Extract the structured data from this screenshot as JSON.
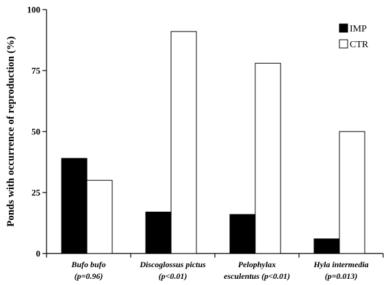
{
  "chart_data": {
    "type": "bar",
    "ylabel": "Ponds with occurrence of reproduction (%)",
    "xlabel": "",
    "ylim": [
      0,
      100
    ],
    "yticks": [
      0,
      25,
      50,
      75,
      100
    ],
    "categories": [
      {
        "line1": "Bufo bufo",
        "line2": "(p=0.96)"
      },
      {
        "line1": "Discoglossus pictus",
        "line2": "(p<0.01)"
      },
      {
        "line1": "Pelophylax",
        "line2": "esculentus (p<0.01)"
      },
      {
        "line1": "Hyla intermedia",
        "line2": "(p=0.013)"
      }
    ],
    "series": [
      {
        "name": "IMP",
        "color": "#000000",
        "values": [
          39,
          17,
          16,
          6
        ]
      },
      {
        "name": "CTR",
        "color": "#ffffff",
        "values": [
          30,
          91,
          78,
          50
        ]
      }
    ],
    "grid": false,
    "legend": "top-right"
  }
}
